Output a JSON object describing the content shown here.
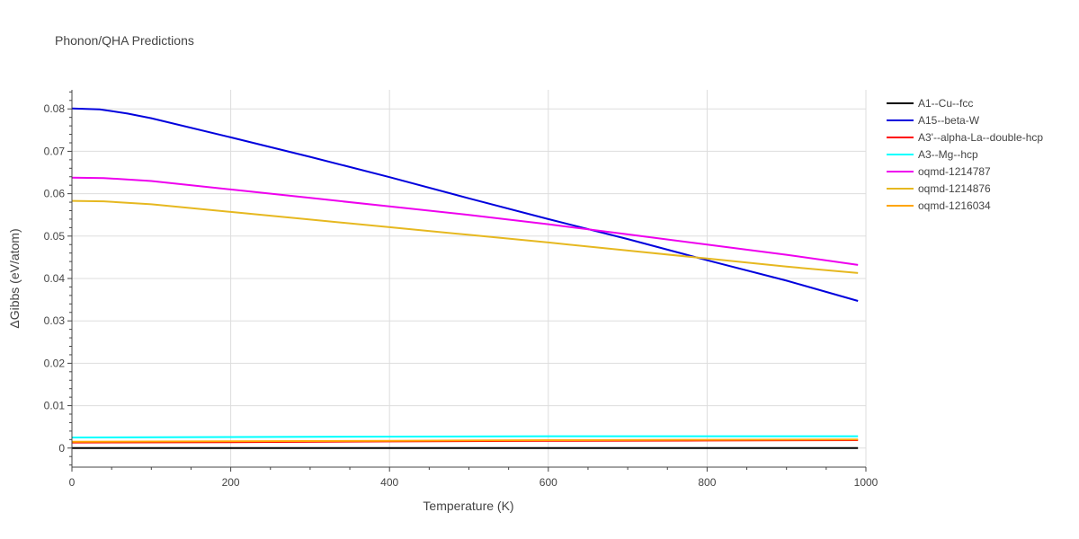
{
  "chart_data": {
    "type": "line",
    "title": "Phonon/QHA Predictions",
    "xlabel": "Temperature (K)",
    "ylabel": "ΔGibbs (eV/atom)",
    "xlim": [
      0,
      1000
    ],
    "ylim": [
      -0.0045,
      0.0845
    ],
    "xticks": [
      0,
      200,
      400,
      600,
      800,
      1000
    ],
    "xtick_labels": [
      "0",
      "200",
      "400",
      "600",
      "800",
      "1000"
    ],
    "yticks": [
      0,
      0.01,
      0.02,
      0.03,
      0.04,
      0.05,
      0.06,
      0.07,
      0.08
    ],
    "ytick_labels": [
      "0",
      "0.01",
      "0.02",
      "0.03",
      "0.04",
      "0.05",
      "0.06",
      "0.07",
      "0.08"
    ],
    "grid": true,
    "legend_position": "right",
    "series": [
      {
        "name": "A1--Cu--fcc",
        "color": "#000000",
        "x": [
          0,
          990
        ],
        "y": [
          0,
          0
        ]
      },
      {
        "name": "A15--beta-W",
        "color": "#0000dd",
        "x": [
          0,
          35,
          70,
          100,
          200,
          300,
          400,
          500,
          600,
          700,
          800,
          900,
          990
        ],
        "y": [
          0.0801,
          0.0799,
          0.0789,
          0.0778,
          0.0733,
          0.0687,
          0.0639,
          0.0589,
          0.054,
          0.0493,
          0.0443,
          0.0395,
          0.0347
        ]
      },
      {
        "name": "A3'--alpha-La--double-hcp",
        "color": "#ff0000",
        "x": [
          0,
          200,
          400,
          600,
          800,
          990
        ],
        "y": [
          0.0013,
          0.0014,
          0.00155,
          0.00168,
          0.00178,
          0.00185
        ]
      },
      {
        "name": "A3--Mg--hcp",
        "color": "#00ffff",
        "x": [
          0,
          200,
          400,
          600,
          800,
          990
        ],
        "y": [
          0.0025,
          0.0026,
          0.0027,
          0.0028,
          0.0028,
          0.0028
        ]
      },
      {
        "name": "oqmd-1214787",
        "color": "#ee00ee",
        "x": [
          0,
          40,
          100,
          200,
          300,
          400,
          500,
          600,
          700,
          800,
          900,
          990
        ],
        "y": [
          0.0638,
          0.0637,
          0.063,
          0.061,
          0.059,
          0.057,
          0.055,
          0.0528,
          0.0504,
          0.048,
          0.0456,
          0.0432
        ]
      },
      {
        "name": "oqmd-1214876",
        "color": "#e6b820",
        "x": [
          0,
          40,
          100,
          200,
          300,
          400,
          500,
          600,
          700,
          800,
          900,
          990
        ],
        "y": [
          0.0583,
          0.0582,
          0.0575,
          0.0557,
          0.0539,
          0.0521,
          0.0503,
          0.0485,
          0.0466,
          0.0447,
          0.0428,
          0.0413
        ]
      },
      {
        "name": "oqmd-1216034",
        "color": "#ffa500",
        "x": [
          0,
          200,
          400,
          600,
          800,
          990
        ],
        "y": [
          0.0015,
          0.0016,
          0.0017,
          0.00185,
          0.00195,
          0.002
        ]
      }
    ]
  }
}
